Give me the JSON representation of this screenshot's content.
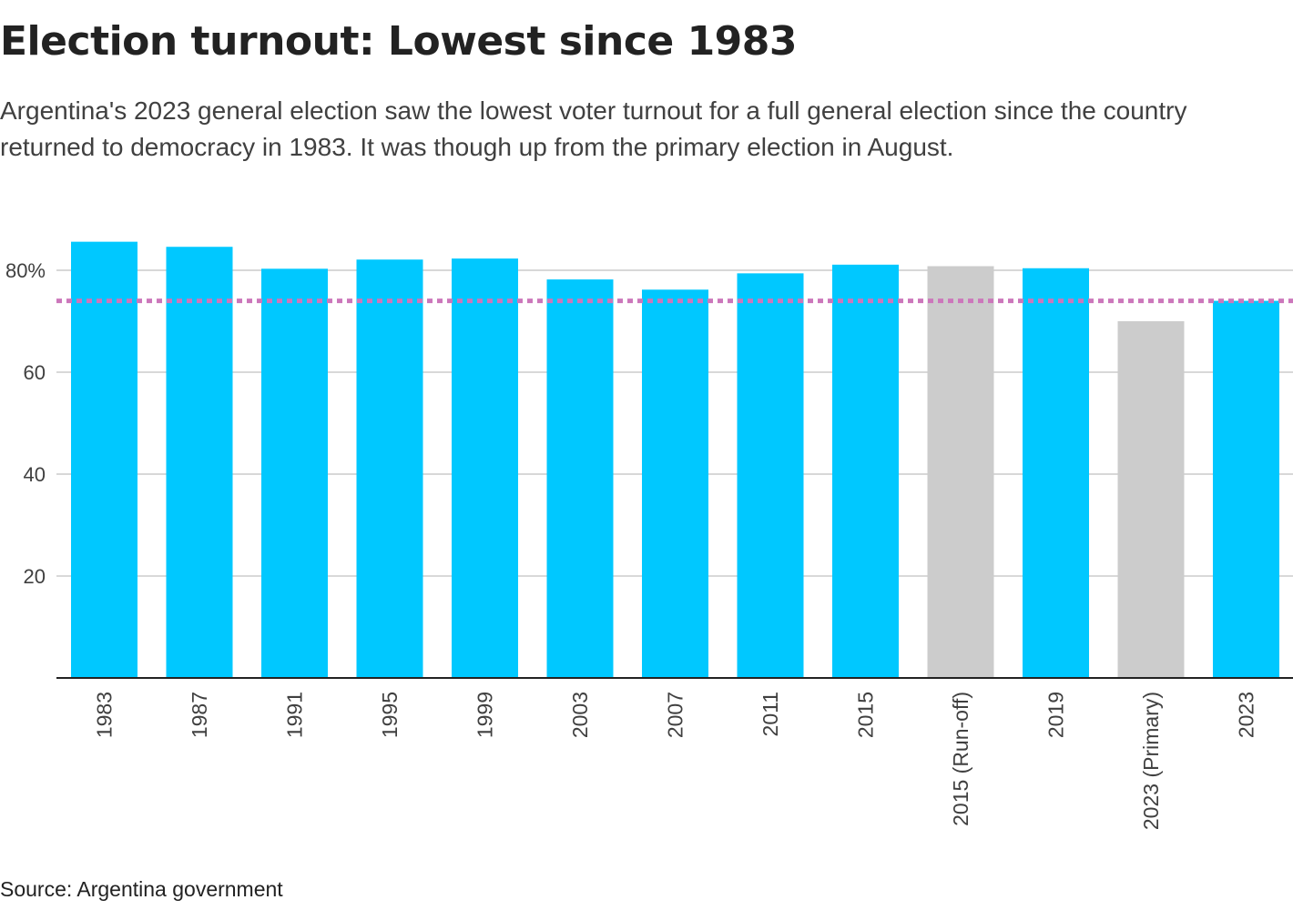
{
  "header": {
    "title": "Election turnout: Lowest since 1983",
    "subtitle": "Argentina's 2023 general election saw the lowest voter turnout for a full general election since the country returned to democracy in 1983. It was though up from the primary election in August."
  },
  "footer": {
    "source": "Source: Argentina government"
  },
  "colors": {
    "general_election": "#00c8ff",
    "other_election": "#cccccc",
    "reference_line": "#cc77bb",
    "gridline": "#cccccc",
    "axis": "#222222"
  },
  "chart_data": {
    "type": "bar",
    "title": "Election turnout: Lowest since 1983",
    "xlabel": "",
    "ylabel": "",
    "categories": [
      "1983",
      "1987",
      "1991",
      "1995",
      "1999",
      "2003",
      "2007",
      "2011",
      "2015",
      "2015 (Run-off)",
      "2019",
      "2023 (Primary)",
      "2023"
    ],
    "values": [
      85.6,
      84.6,
      80.3,
      82.1,
      82.3,
      78.2,
      76.2,
      79.4,
      81.1,
      80.8,
      80.4,
      70.0,
      74.0
    ],
    "highlight": [
      "general",
      "general",
      "general",
      "general",
      "general",
      "general",
      "general",
      "general",
      "general",
      "other",
      "general",
      "other",
      "general"
    ],
    "reference_line": {
      "value": 74.0,
      "style": "dotted"
    },
    "ylim": [
      0,
      90
    ],
    "yticks": [
      20,
      40,
      60,
      80
    ],
    "ytick_labels": [
      "20",
      "40",
      "60",
      "80%"
    ],
    "grid": true
  }
}
